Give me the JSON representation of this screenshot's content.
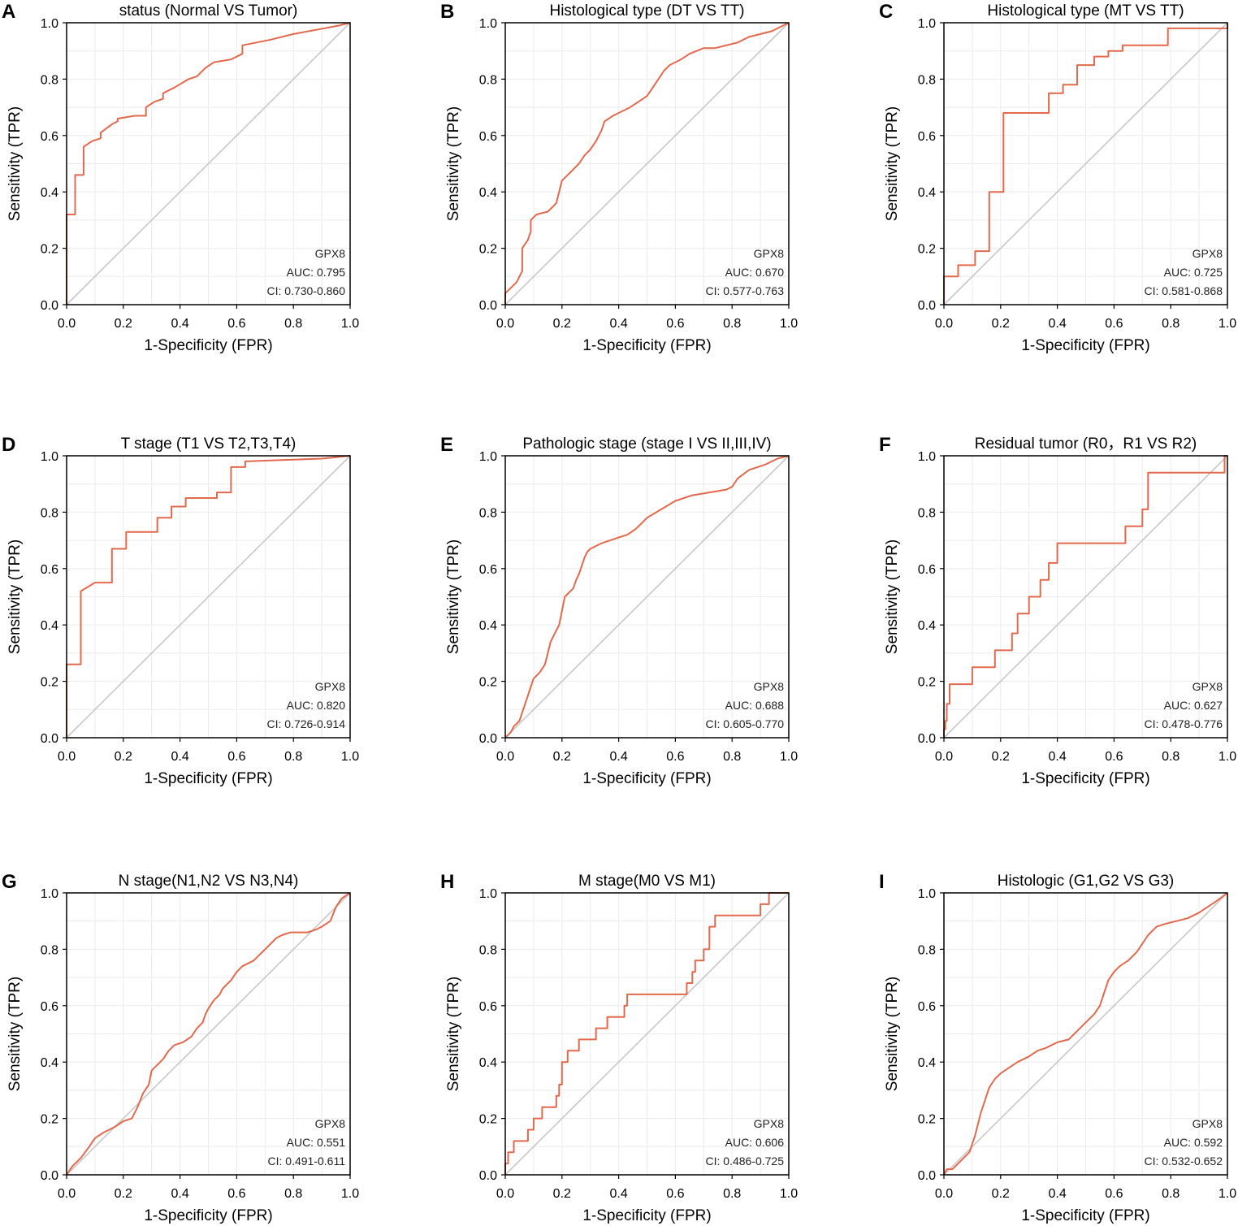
{
  "colors": {
    "roc": "#e2694d",
    "diagonal": "#c8c8c8",
    "grid": "#ebebeb",
    "frame": "#000000"
  },
  "chart_data": [
    {
      "letter": "A",
      "type": "line",
      "title": "status (Normal VS Tumor)",
      "xlabel": "1-Specificity (FPR)",
      "ylabel": "Sensitivity (TPR)",
      "xlim": [
        0,
        1
      ],
      "ylim": [
        0,
        1
      ],
      "xticks": [
        "0.0",
        "0.2",
        "0.4",
        "0.6",
        "0.8",
        "1.0"
      ],
      "yticks": [
        "0.0",
        "0.2",
        "0.4",
        "0.6",
        "0.8",
        "1.0"
      ],
      "marker": "GPX8",
      "auc": "AUC: 0.795",
      "ci": "CI: 0.730-0.860",
      "series": [
        {
          "name": "GPX8",
          "x": [
            0,
            0,
            0.005,
            0.03,
            0.03,
            0.06,
            0.06,
            0.09,
            0.12,
            0.12,
            0.16,
            0.18,
            0.18,
            0.24,
            0.28,
            0.28,
            0.31,
            0.34,
            0.34,
            0.38,
            0.43,
            0.46,
            0.49,
            0.52,
            0.58,
            0.62,
            0.62,
            0.72,
            0.8,
            0.96,
            1.0
          ],
          "y": [
            0,
            0.32,
            0.32,
            0.32,
            0.46,
            0.46,
            0.56,
            0.58,
            0.59,
            0.61,
            0.64,
            0.65,
            0.66,
            0.67,
            0.67,
            0.7,
            0.72,
            0.73,
            0.75,
            0.77,
            0.8,
            0.81,
            0.84,
            0.86,
            0.87,
            0.89,
            0.92,
            0.94,
            0.96,
            0.99,
            1.0
          ]
        }
      ]
    },
    {
      "letter": "B",
      "type": "line",
      "title": "Histological type (DT VS TT)",
      "xlabel": "1-Specificity (FPR)",
      "ylabel": "Sensitivity (TPR)",
      "xlim": [
        0,
        1
      ],
      "ylim": [
        0,
        1
      ],
      "xticks": [
        "0.0",
        "0.2",
        "0.4",
        "0.6",
        "0.8",
        "1.0"
      ],
      "yticks": [
        "0.0",
        "0.2",
        "0.4",
        "0.6",
        "0.8",
        "1.0"
      ],
      "marker": "GPX8",
      "auc": "AUC: 0.670",
      "ci": "CI: 0.577-0.763",
      "series": [
        {
          "name": "GPX8",
          "x": [
            0,
            0,
            0.02,
            0.04,
            0.05,
            0.06,
            0.06,
            0.08,
            0.09,
            0.09,
            0.11,
            0.15,
            0.18,
            0.19,
            0.2,
            0.22,
            0.24,
            0.26,
            0.28,
            0.3,
            0.32,
            0.34,
            0.35,
            0.38,
            0.4,
            0.44,
            0.47,
            0.5,
            0.52,
            0.54,
            0.56,
            0.58,
            0.6,
            0.62,
            0.65,
            0.7,
            0.74,
            0.82,
            0.86,
            0.9,
            0.94,
            1.0
          ],
          "y": [
            0,
            0.04,
            0.06,
            0.08,
            0.1,
            0.12,
            0.2,
            0.23,
            0.26,
            0.3,
            0.32,
            0.33,
            0.36,
            0.4,
            0.44,
            0.46,
            0.48,
            0.5,
            0.53,
            0.55,
            0.58,
            0.62,
            0.65,
            0.67,
            0.68,
            0.7,
            0.72,
            0.74,
            0.77,
            0.8,
            0.83,
            0.85,
            0.86,
            0.87,
            0.89,
            0.91,
            0.91,
            0.93,
            0.95,
            0.96,
            0.97,
            1.0
          ]
        }
      ]
    },
    {
      "letter": "C",
      "type": "line",
      "title": "Histological type (MT VS TT)",
      "xlabel": "1-Specificity (FPR)",
      "ylabel": "Sensitivity (TPR)",
      "xlim": [
        0,
        1
      ],
      "ylim": [
        0,
        1
      ],
      "xticks": [
        "0.0",
        "0.2",
        "0.4",
        "0.6",
        "0.8",
        "1.0"
      ],
      "yticks": [
        "0.0",
        "0.2",
        "0.4",
        "0.6",
        "0.8",
        "1.0"
      ],
      "marker": "GPX8",
      "auc": "AUC: 0.725",
      "ci": "CI: 0.581-0.868",
      "series": [
        {
          "name": "GPX8",
          "x": [
            0,
            0,
            0.05,
            0.05,
            0.11,
            0.11,
            0.16,
            0.16,
            0.21,
            0.21,
            0.37,
            0.37,
            0.42,
            0.42,
            0.47,
            0.47,
            0.53,
            0.53,
            0.58,
            0.58,
            0.63,
            0.63,
            0.79,
            0.79,
            1.0,
            1.0
          ],
          "y": [
            0,
            0.1,
            0.1,
            0.14,
            0.14,
            0.19,
            0.19,
            0.4,
            0.4,
            0.68,
            0.68,
            0.75,
            0.75,
            0.78,
            0.78,
            0.85,
            0.85,
            0.88,
            0.88,
            0.9,
            0.9,
            0.92,
            0.92,
            0.98,
            0.98,
            1.0
          ]
        }
      ]
    },
    {
      "letter": "D",
      "type": "line",
      "title": "T stage (T1 VS T2,T3,T4)",
      "xlabel": "1-Specificity (FPR)",
      "ylabel": "Sensitivity (TPR)",
      "xlim": [
        0,
        1
      ],
      "ylim": [
        0,
        1
      ],
      "xticks": [
        "0.0",
        "0.2",
        "0.4",
        "0.6",
        "0.8",
        "1.0"
      ],
      "yticks": [
        "0.0",
        "0.2",
        "0.4",
        "0.6",
        "0.8",
        "1.0"
      ],
      "marker": "GPX8",
      "auc": "AUC: 0.820",
      "ci": "CI: 0.726-0.914",
      "series": [
        {
          "name": "GPX8",
          "x": [
            0,
            0,
            0.05,
            0.05,
            0.1,
            0.16,
            0.16,
            0.21,
            0.21,
            0.32,
            0.32,
            0.37,
            0.37,
            0.42,
            0.42,
            0.53,
            0.53,
            0.58,
            0.58,
            0.63,
            0.63,
            0.9,
            1.0
          ],
          "y": [
            0,
            0.26,
            0.26,
            0.52,
            0.55,
            0.55,
            0.67,
            0.67,
            0.73,
            0.73,
            0.78,
            0.78,
            0.82,
            0.82,
            0.85,
            0.85,
            0.87,
            0.87,
            0.96,
            0.96,
            0.98,
            0.99,
            1.0
          ]
        }
      ]
    },
    {
      "letter": "E",
      "type": "line",
      "title": "Pathologic stage (stage I VS II,III,IV)",
      "xlabel": "1-Specificity (FPR)",
      "ylabel": "Sensitivity (TPR)",
      "xlim": [
        0,
        1
      ],
      "ylim": [
        0,
        1
      ],
      "xticks": [
        "0.0",
        "0.2",
        "0.4",
        "0.6",
        "0.8",
        "1.0"
      ],
      "yticks": [
        "0.0",
        "0.2",
        "0.4",
        "0.6",
        "0.8",
        "1.0"
      ],
      "marker": "GPX8",
      "auc": "AUC: 0.688",
      "ci": "CI: 0.605-0.770",
      "series": [
        {
          "name": "GPX8",
          "x": [
            0,
            0.02,
            0.03,
            0.05,
            0.06,
            0.07,
            0.08,
            0.09,
            0.1,
            0.12,
            0.14,
            0.15,
            0.16,
            0.18,
            0.19,
            0.2,
            0.21,
            0.22,
            0.24,
            0.25,
            0.26,
            0.27,
            0.28,
            0.29,
            0.3,
            0.32,
            0.34,
            0.37,
            0.4,
            0.43,
            0.46,
            0.48,
            0.5,
            0.55,
            0.6,
            0.66,
            0.72,
            0.78,
            0.8,
            0.82,
            0.86,
            0.92,
            0.96,
            1.0
          ],
          "y": [
            0,
            0.02,
            0.04,
            0.06,
            0.09,
            0.12,
            0.15,
            0.18,
            0.21,
            0.23,
            0.26,
            0.3,
            0.34,
            0.38,
            0.4,
            0.45,
            0.5,
            0.51,
            0.53,
            0.56,
            0.58,
            0.61,
            0.64,
            0.66,
            0.67,
            0.68,
            0.69,
            0.7,
            0.71,
            0.72,
            0.74,
            0.76,
            0.78,
            0.81,
            0.84,
            0.86,
            0.87,
            0.88,
            0.89,
            0.92,
            0.95,
            0.97,
            0.99,
            1.0
          ]
        }
      ]
    },
    {
      "letter": "F",
      "type": "line",
      "title": "Residual tumor (R0，R1 VS R2)",
      "xlabel": "1-Specificity (FPR)",
      "ylabel": "Sensitivity (TPR)",
      "xlim": [
        0,
        1
      ],
      "ylim": [
        0,
        1
      ],
      "xticks": [
        "0.0",
        "0.2",
        "0.4",
        "0.6",
        "0.8",
        "1.0"
      ],
      "yticks": [
        "0.0",
        "0.2",
        "0.4",
        "0.6",
        "0.8",
        "1.0"
      ],
      "marker": "GPX8",
      "auc": "AUC: 0.627",
      "ci": "CI: 0.478-0.776",
      "series": [
        {
          "name": "GPX8",
          "x": [
            0,
            0,
            0.005,
            0.005,
            0.01,
            0.01,
            0.02,
            0.02,
            0.1,
            0.1,
            0.18,
            0.18,
            0.24,
            0.24,
            0.26,
            0.26,
            0.3,
            0.3,
            0.34,
            0.34,
            0.37,
            0.37,
            0.4,
            0.4,
            0.64,
            0.64,
            0.7,
            0.7,
            0.72,
            0.72,
            0.99,
            0.99,
            1.0
          ],
          "y": [
            0,
            0.03,
            0.03,
            0.06,
            0.06,
            0.12,
            0.12,
            0.19,
            0.19,
            0.25,
            0.25,
            0.31,
            0.31,
            0.37,
            0.37,
            0.44,
            0.44,
            0.5,
            0.5,
            0.56,
            0.56,
            0.62,
            0.62,
            0.69,
            0.69,
            0.75,
            0.75,
            0.81,
            0.81,
            0.94,
            0.94,
            1.0,
            1.0
          ]
        }
      ]
    },
    {
      "letter": "G",
      "type": "line",
      "title": "N stage(N1,N2 VS N3,N4)",
      "xlabel": "1-Specificity (FPR)",
      "ylabel": "Sensitivity (TPR)",
      "xlim": [
        0,
        1
      ],
      "ylim": [
        0,
        1
      ],
      "xticks": [
        "0.0",
        "0.2",
        "0.4",
        "0.6",
        "0.8",
        "1.0"
      ],
      "yticks": [
        "0.0",
        "0.2",
        "0.4",
        "0.6",
        "0.8",
        "1.0"
      ],
      "marker": "GPX8",
      "auc": "AUC: 0.551",
      "ci": "CI: 0.491-0.611",
      "series": [
        {
          "name": "GPX8",
          "x": [
            0,
            0.02,
            0.05,
            0.08,
            0.1,
            0.13,
            0.17,
            0.2,
            0.23,
            0.25,
            0.27,
            0.29,
            0.3,
            0.32,
            0.34,
            0.36,
            0.38,
            0.41,
            0.44,
            0.46,
            0.48,
            0.49,
            0.5,
            0.52,
            0.54,
            0.55,
            0.57,
            0.58,
            0.6,
            0.62,
            0.64,
            0.66,
            0.68,
            0.7,
            0.72,
            0.74,
            0.76,
            0.79,
            0.82,
            0.85,
            0.88,
            0.9,
            0.93,
            0.95,
            0.97,
            1.0
          ],
          "y": [
            0,
            0.03,
            0.06,
            0.1,
            0.13,
            0.15,
            0.17,
            0.19,
            0.2,
            0.24,
            0.29,
            0.32,
            0.37,
            0.39,
            0.41,
            0.44,
            0.46,
            0.47,
            0.49,
            0.52,
            0.54,
            0.57,
            0.59,
            0.62,
            0.64,
            0.66,
            0.68,
            0.69,
            0.72,
            0.74,
            0.75,
            0.76,
            0.78,
            0.8,
            0.82,
            0.84,
            0.85,
            0.86,
            0.86,
            0.86,
            0.87,
            0.88,
            0.9,
            0.95,
            0.98,
            1.0
          ]
        }
      ]
    },
    {
      "letter": "H",
      "type": "line",
      "title": "M stage(M0 VS M1)",
      "xlabel": "1-Specificity (FPR)",
      "ylabel": "Sensitivity (TPR)",
      "xlim": [
        0,
        1
      ],
      "ylim": [
        0,
        1
      ],
      "xticks": [
        "0.0",
        "0.2",
        "0.4",
        "0.6",
        "0.8",
        "1.0"
      ],
      "yticks": [
        "0.0",
        "0.2",
        "0.4",
        "0.6",
        "0.8",
        "1.0"
      ],
      "marker": "GPX8",
      "auc": "AUC: 0.606",
      "ci": "CI: 0.486-0.725",
      "series": [
        {
          "name": "GPX8",
          "x": [
            0,
            0,
            0.01,
            0.01,
            0.03,
            0.03,
            0.08,
            0.08,
            0.1,
            0.1,
            0.13,
            0.13,
            0.18,
            0.18,
            0.19,
            0.19,
            0.2,
            0.2,
            0.22,
            0.22,
            0.26,
            0.26,
            0.32,
            0.32,
            0.36,
            0.36,
            0.42,
            0.42,
            0.43,
            0.43,
            0.64,
            0.64,
            0.66,
            0.66,
            0.67,
            0.67,
            0.7,
            0.7,
            0.72,
            0.72,
            0.74,
            0.74,
            0.82,
            0.82,
            0.9,
            0.9,
            0.93,
            0.93,
            1.0
          ],
          "y": [
            0,
            0.04,
            0.04,
            0.08,
            0.08,
            0.12,
            0.12,
            0.16,
            0.16,
            0.2,
            0.2,
            0.24,
            0.24,
            0.28,
            0.28,
            0.32,
            0.32,
            0.4,
            0.4,
            0.44,
            0.44,
            0.48,
            0.48,
            0.52,
            0.52,
            0.56,
            0.56,
            0.6,
            0.6,
            0.64,
            0.64,
            0.68,
            0.68,
            0.72,
            0.72,
            0.76,
            0.76,
            0.8,
            0.8,
            0.88,
            0.88,
            0.92,
            0.92,
            0.92,
            0.92,
            0.96,
            0.96,
            1.0,
            1.0
          ]
        }
      ]
    },
    {
      "letter": "I",
      "type": "line",
      "title": "Histologic (G1,G2 VS G3)",
      "xlabel": "1-Specificity (FPR)",
      "ylabel": "Sensitivity (TPR)",
      "xlim": [
        0,
        1
      ],
      "ylim": [
        0,
        1
      ],
      "xticks": [
        "0.0",
        "0.2",
        "0.4",
        "0.6",
        "0.8",
        "1.0"
      ],
      "yticks": [
        "0.0",
        "0.2",
        "0.4",
        "0.6",
        "0.8",
        "1.0"
      ],
      "marker": "GPX8",
      "auc": "AUC: 0.592",
      "ci": "CI: 0.532-0.652",
      "series": [
        {
          "name": "GPX8",
          "x": [
            0,
            0.01,
            0.03,
            0.05,
            0.07,
            0.09,
            0.1,
            0.11,
            0.12,
            0.13,
            0.14,
            0.15,
            0.16,
            0.18,
            0.2,
            0.23,
            0.26,
            0.3,
            0.33,
            0.36,
            0.4,
            0.44,
            0.46,
            0.48,
            0.5,
            0.53,
            0.55,
            0.56,
            0.57,
            0.58,
            0.6,
            0.62,
            0.65,
            0.68,
            0.7,
            0.72,
            0.75,
            0.78,
            0.82,
            0.86,
            0.9,
            0.93,
            0.96,
            1.0
          ],
          "y": [
            0,
            0.02,
            0.02,
            0.04,
            0.06,
            0.08,
            0.11,
            0.14,
            0.18,
            0.22,
            0.25,
            0.28,
            0.31,
            0.34,
            0.36,
            0.38,
            0.4,
            0.42,
            0.44,
            0.45,
            0.47,
            0.48,
            0.5,
            0.52,
            0.54,
            0.57,
            0.6,
            0.63,
            0.66,
            0.69,
            0.72,
            0.74,
            0.76,
            0.79,
            0.82,
            0.85,
            0.88,
            0.89,
            0.9,
            0.91,
            0.93,
            0.95,
            0.97,
            1.0
          ]
        }
      ]
    }
  ]
}
